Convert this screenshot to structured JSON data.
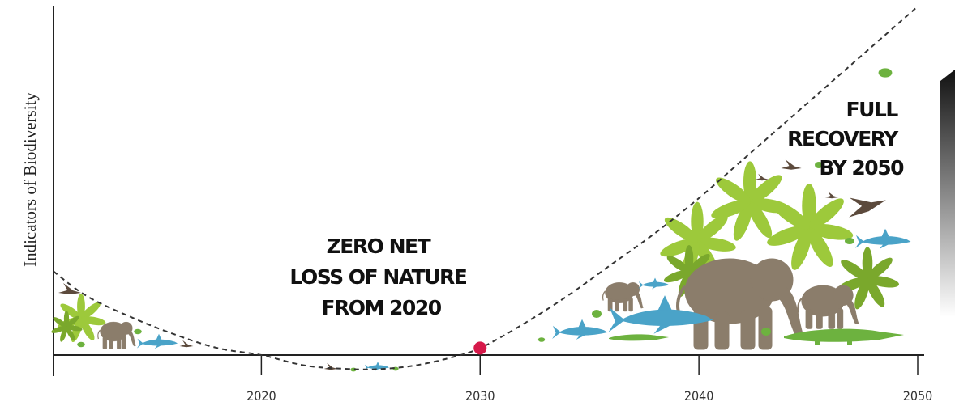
{
  "chart_data": {
    "type": "line",
    "ylabel": "Indicators of Biodiversity",
    "xlabel": "",
    "xlim": [
      2010.5,
      2050
    ],
    "x_ticks": [
      2020,
      2030,
      2040,
      2050
    ],
    "grid": false,
    "y_ticks_shown": false,
    "series": [
      {
        "style": "dashed",
        "x": [
          2010.5,
          2012,
          2014,
          2016,
          2018,
          2020,
          2022,
          2024,
          2025.5,
          2027,
          2028.5,
          2030,
          2032,
          2034,
          2036,
          2038,
          2040,
          2042,
          2044,
          2046,
          2048,
          2050
        ],
        "y": [
          0.24,
          0.17,
          0.11,
          0.06,
          0.02,
          0.0,
          -0.03,
          -0.04,
          -0.04,
          -0.03,
          -0.01,
          0.02,
          0.09,
          0.17,
          0.26,
          0.35,
          0.45,
          0.56,
          0.67,
          0.78,
          0.89,
          1.0
        ]
      }
    ],
    "marker": {
      "x": 2030,
      "y": 0.02,
      "color": "#d6194a"
    },
    "annotations": [
      {
        "lines": [
          "ZERO NET",
          "LOSS OF NATURE",
          "FROM 2020"
        ]
      },
      {
        "lines": [
          "FULL",
          "RECOVERY",
          "BY 2050"
        ]
      }
    ],
    "colors": {
      "curve": "#333333",
      "axis": "#222222",
      "marker": "#d6194a",
      "leaf": "#9dc93b",
      "leaf_dark": "#7aa82c",
      "elephant": "#8b7d6b",
      "shark": "#4aa3c8",
      "crocodile": "#6db23f",
      "bird": "#5c4a3c",
      "arrow_top": "#111111",
      "arrow_bottom": "#ffffff"
    },
    "illustrations": [
      "leaf-cluster",
      "elephant",
      "shark",
      "crocodile",
      "bird",
      "frog",
      "turtle",
      "gradient-arrow"
    ]
  }
}
